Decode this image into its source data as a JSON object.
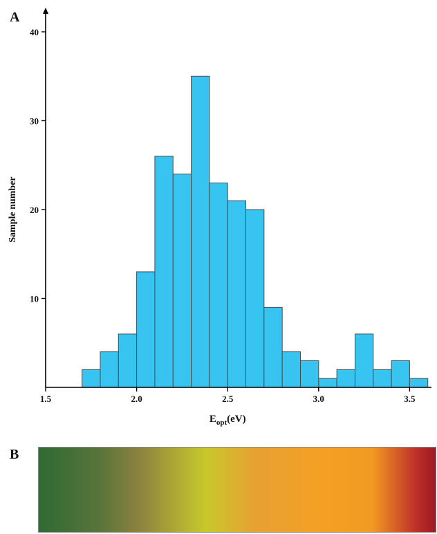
{
  "panels": {
    "a": "A",
    "b": "B"
  },
  "chart_data": {
    "type": "bar",
    "subtype": "histogram",
    "bin_start": 1.7,
    "bin_width": 0.1,
    "values": [
      2,
      4,
      6,
      13,
      26,
      24,
      35,
      23,
      21,
      20,
      9,
      4,
      3,
      1,
      2,
      6,
      2,
      3,
      1
    ],
    "xlabel": {
      "main": "E",
      "sub": "opt",
      "unit": "(eV)"
    },
    "ylabel": "Sample number",
    "xlim": [
      1.5,
      3.62
    ],
    "ylim": [
      0,
      40
    ],
    "xticks": [
      1.5,
      2.0,
      2.5,
      3.0,
      3.5
    ],
    "xtick_labels": [
      "1.5",
      "2.0",
      "2.5",
      "3.0",
      "3.5"
    ],
    "yticks": [
      10,
      20,
      30,
      40
    ],
    "ytick_labels": [
      "10",
      "20",
      "30",
      "40"
    ],
    "grid": false,
    "bar_color": "#38c4f0",
    "bar_edge_color": "#4a4a4a"
  },
  "gradient_bar": {
    "colors": [
      "#2f6a34",
      "#57743a",
      "#8c8040",
      "#c8c82c",
      "#e8a032",
      "#f5a024",
      "#f29a22",
      "#c0302a",
      "#9a1a22"
    ],
    "stops": [
      0,
      15,
      25,
      42,
      55,
      72,
      84,
      95,
      100
    ]
  }
}
